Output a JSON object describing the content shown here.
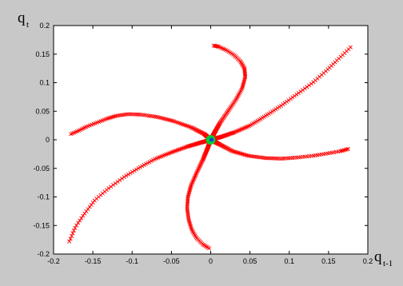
{
  "chart_data": {
    "type": "scatter",
    "xlabel": {
      "main": "q",
      "sub": "t-1"
    },
    "ylabel": {
      "main": "q",
      "sub": "t"
    },
    "xlim": [
      -0.2,
      0.2
    ],
    "ylim": [
      -0.2,
      0.2
    ],
    "x_ticks": [
      -0.2,
      -0.15,
      -0.1,
      -0.05,
      0,
      0.05,
      0.1,
      0.15,
      0.2
    ],
    "x_tick_labels": [
      "-0.2",
      "-0.15",
      "-0.1",
      "-0.05",
      "0",
      "0.05",
      "0.1",
      "0.15",
      "0.2"
    ],
    "y_ticks": [
      0.2,
      0.15,
      0.1,
      0.05,
      0,
      -0.05,
      -0.1,
      -0.15,
      -0.2
    ],
    "y_tick_labels": [
      "0.2",
      "0.15",
      "0.1",
      "0.05",
      "0",
      "-0.05",
      "-0.1",
      "-0.15",
      "-0.2"
    ],
    "grid": false,
    "marker": "x",
    "colors": {
      "figure_bg": "#c8c8c8",
      "axes_bg": "#ffffff",
      "spiral": "#ff0000",
      "center": "#00cc33",
      "center_dot": "#1a3fe0"
    },
    "spiral_arms": [
      {
        "name": "",
        "points": [
          [
            0,
            0
          ],
          [
            0.005,
            0.013
          ],
          [
            0.012,
            0.03
          ],
          [
            0.022,
            0.05
          ],
          [
            0.032,
            0.07
          ],
          [
            0.04,
            0.09
          ],
          [
            0.044,
            0.11
          ],
          [
            0.043,
            0.125
          ],
          [
            0.038,
            0.137
          ],
          [
            0.03,
            0.148
          ],
          [
            0.02,
            0.157
          ],
          [
            0.01,
            0.163
          ],
          [
            0.004,
            0.165
          ]
        ]
      },
      {
        "name": "",
        "points": [
          [
            0,
            0
          ],
          [
            -0.008,
            0.01
          ],
          [
            -0.025,
            0.022
          ],
          [
            -0.048,
            0.033
          ],
          [
            -0.068,
            0.04
          ],
          [
            -0.088,
            0.044
          ],
          [
            -0.105,
            0.045
          ],
          [
            -0.12,
            0.042
          ],
          [
            -0.132,
            0.037
          ],
          [
            -0.145,
            0.03
          ],
          [
            -0.158,
            0.023
          ],
          [
            -0.168,
            0.016
          ],
          [
            -0.178,
            0.01
          ]
        ]
      },
      {
        "name": "",
        "points": [
          [
            0,
            0
          ],
          [
            -0.013,
            -0.005
          ],
          [
            -0.03,
            -0.012
          ],
          [
            -0.05,
            -0.022
          ],
          [
            -0.07,
            -0.033
          ],
          [
            -0.09,
            -0.048
          ],
          [
            -0.11,
            -0.065
          ],
          [
            -0.13,
            -0.085
          ],
          [
            -0.147,
            -0.105
          ],
          [
            -0.16,
            -0.128
          ],
          [
            -0.172,
            -0.152
          ],
          [
            -0.18,
            -0.178
          ]
        ]
      },
      {
        "name": "",
        "points": [
          [
            0,
            0
          ],
          [
            -0.004,
            -0.015
          ],
          [
            -0.01,
            -0.035
          ],
          [
            -0.018,
            -0.058
          ],
          [
            -0.025,
            -0.08
          ],
          [
            -0.029,
            -0.1
          ],
          [
            -0.03,
            -0.12
          ],
          [
            -0.028,
            -0.14
          ],
          [
            -0.024,
            -0.158
          ],
          [
            -0.018,
            -0.172
          ],
          [
            -0.01,
            -0.183
          ],
          [
            -0.002,
            -0.19
          ]
        ]
      },
      {
        "name": "",
        "points": [
          [
            0,
            0
          ],
          [
            0.01,
            -0.007
          ],
          [
            0.028,
            -0.02
          ],
          [
            0.048,
            -0.028
          ],
          [
            0.07,
            -0.032
          ],
          [
            0.09,
            -0.033
          ],
          [
            0.11,
            -0.031
          ],
          [
            0.13,
            -0.028
          ],
          [
            0.148,
            -0.024
          ],
          [
            0.165,
            -0.02
          ],
          [
            0.175,
            -0.016
          ]
        ]
      },
      {
        "name": "",
        "points": [
          [
            0,
            0
          ],
          [
            0.013,
            0.005
          ],
          [
            0.03,
            0.013
          ],
          [
            0.05,
            0.025
          ],
          [
            0.07,
            0.042
          ],
          [
            0.09,
            0.06
          ],
          [
            0.11,
            0.08
          ],
          [
            0.13,
            0.1
          ],
          [
            0.148,
            0.122
          ],
          [
            0.163,
            0.142
          ],
          [
            0.178,
            0.162
          ]
        ]
      }
    ],
    "center_point": [
      0,
      0
    ]
  }
}
